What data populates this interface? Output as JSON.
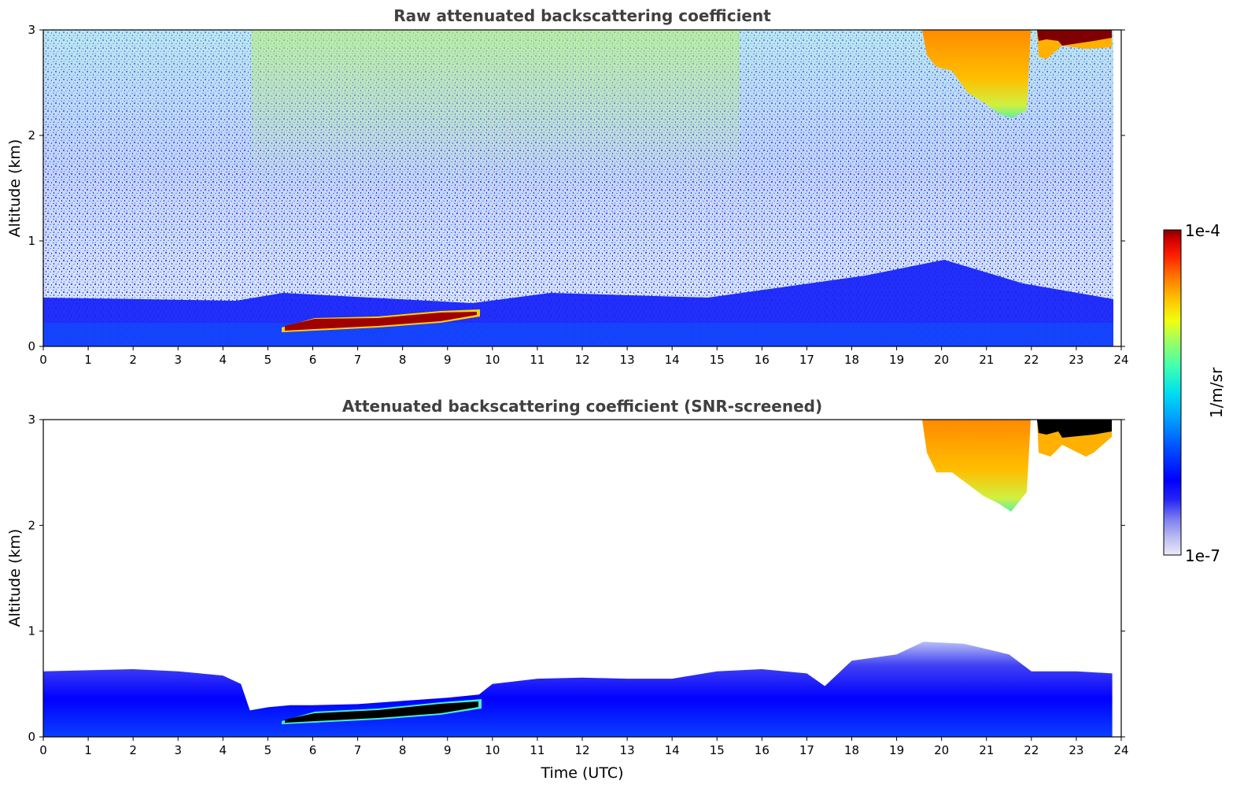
{
  "chart_data": [
    {
      "type": "heatmap",
      "title": "Raw attenuated backscattering coefficient",
      "xlabel": "",
      "ylabel": "Altitude (km)",
      "xlim": [
        0,
        24
      ],
      "ylim": [
        0,
        3
      ],
      "xticks": [
        "0",
        "1",
        "2",
        "3",
        "4",
        "5",
        "6",
        "7",
        "8",
        "9",
        "10",
        "11",
        "12",
        "13",
        "14",
        "15",
        "16",
        "17",
        "18",
        "19",
        "20",
        "21",
        "22",
        "23",
        "24"
      ],
      "yticks": [
        "0",
        "1",
        "2",
        "3"
      ],
      "data_end_hour": 23.8,
      "features": [
        {
          "name": "boundary layer aerosol",
          "x_range": [
            0,
            23.8
          ],
          "y_range": [
            0,
            0.45
          ],
          "level": "medium-low (blue)"
        },
        {
          "name": "low cloud layer",
          "x_range": [
            5.3,
            9.7
          ],
          "y_range": [
            0.15,
            0.33
          ],
          "level": "high (dark red)"
        },
        {
          "name": "noisy background",
          "x_range": [
            0,
            23.8
          ],
          "y_range": [
            0.45,
            3
          ],
          "level": "low-medium noise (blue/cyan/green)"
        },
        {
          "name": "high cloud",
          "x_range": [
            19.6,
            22.0
          ],
          "y_range": [
            2.2,
            3
          ],
          "level": "medium-high (orange/yellow)"
        },
        {
          "name": "high cloud top",
          "x_range": [
            22.0,
            23.8
          ],
          "y_range": [
            2.8,
            3
          ],
          "level": "high (dark red)"
        }
      ]
    },
    {
      "type": "heatmap",
      "title": "Attenuated backscattering coefficient (SNR-screened)",
      "xlabel": "Time (UTC)",
      "ylabel": "Altitude (km)",
      "xlim": [
        0,
        24
      ],
      "ylim": [
        0,
        3
      ],
      "xticks": [
        "0",
        "1",
        "2",
        "3",
        "4",
        "5",
        "6",
        "7",
        "8",
        "9",
        "10",
        "11",
        "12",
        "13",
        "14",
        "15",
        "16",
        "17",
        "18",
        "19",
        "20",
        "21",
        "22",
        "23",
        "24"
      ],
      "yticks": [
        "0",
        "1",
        "2",
        "3"
      ],
      "data_end_hour": 23.8,
      "boundary_layer_top_km": [
        [
          0,
          0.62
        ],
        [
          1,
          0.63
        ],
        [
          2,
          0.64
        ],
        [
          3,
          0.62
        ],
        [
          4,
          0.58
        ],
        [
          4.4,
          0.5
        ],
        [
          4.6,
          0.25
        ],
        [
          5,
          0.28
        ],
        [
          5.5,
          0.3
        ],
        [
          6,
          0.3
        ],
        [
          7,
          0.31
        ],
        [
          8,
          0.34
        ],
        [
          9,
          0.37
        ],
        [
          9.7,
          0.4
        ],
        [
          10,
          0.5
        ],
        [
          11,
          0.55
        ],
        [
          12,
          0.56
        ],
        [
          13,
          0.55
        ],
        [
          14,
          0.55
        ],
        [
          15,
          0.62
        ],
        [
          16,
          0.64
        ],
        [
          17,
          0.6
        ],
        [
          17.4,
          0.48
        ],
        [
          18,
          0.72
        ],
        [
          19,
          0.78
        ],
        [
          19.6,
          0.9
        ],
        [
          20.5,
          0.88
        ],
        [
          21.5,
          0.78
        ],
        [
          22,
          0.62
        ],
        [
          23,
          0.62
        ],
        [
          23.8,
          0.6
        ]
      ],
      "features": [
        {
          "name": "low cloud layer",
          "x_range": [
            5.3,
            9.7
          ],
          "y_range": [
            0.15,
            0.33
          ],
          "level": "saturated (black)"
        },
        {
          "name": "high cloud",
          "x_range": [
            19.6,
            22.0
          ],
          "y_range": [
            2.1,
            3
          ],
          "level": "medium-high (orange/yellow)"
        },
        {
          "name": "high cloud top",
          "x_range": [
            22.0,
            23.8
          ],
          "y_range": [
            2.8,
            3
          ],
          "level": "saturated (black)"
        }
      ]
    }
  ],
  "colorbar": {
    "label": "1/m/sr",
    "max_label": "1e-4",
    "min_label": "1e-7",
    "colors": [
      "#ebebf8",
      "#b5b5f2",
      "#7e7ef0",
      "#2525f5",
      "#0000ff",
      "#0050ff",
      "#00a0ff",
      "#00e0f0",
      "#40ffb0",
      "#a0ff60",
      "#f0ff10",
      "#ffc000",
      "#ff7000",
      "#ff2000",
      "#d00000",
      "#800000"
    ]
  }
}
